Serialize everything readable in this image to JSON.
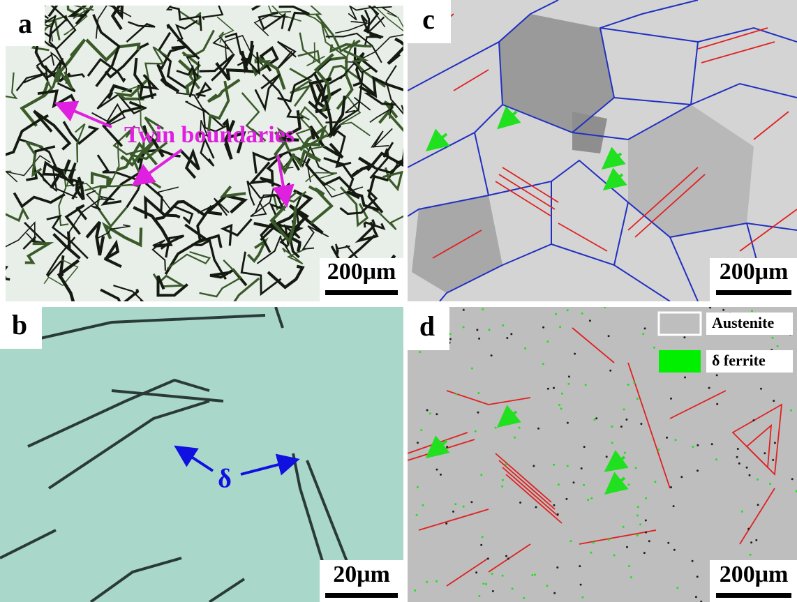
{
  "panels": [
    {
      "label": "a",
      "annotation": "Twin boundaries",
      "scale_bar": "200μm"
    },
    {
      "label": "b",
      "annotation": "δ",
      "scale_bar": "20μm"
    },
    {
      "label": "c",
      "scale_bar": "200μm"
    },
    {
      "label": "d",
      "scale_bar": "200μm",
      "legend": [
        "Austenite",
        "δ ferrite"
      ]
    }
  ]
}
